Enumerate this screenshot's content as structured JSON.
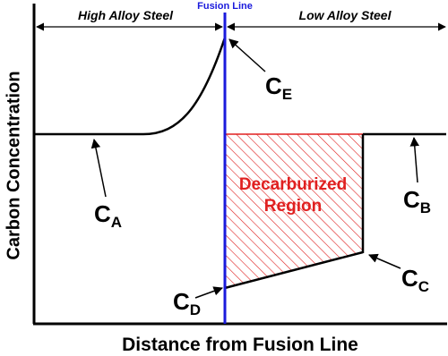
{
  "diagram": {
    "y_axis_label": "Carbon Concentration",
    "x_axis_label": "Distance from Fusion Line",
    "fusion_line_label": "Fusion Line",
    "left_region": "High Alloy Steel",
    "right_region": "Low Alloy Steel",
    "region_label": [
      "Decarburized",
      "Region"
    ],
    "points": [
      {
        "letter": "C",
        "subscript": "E"
      },
      {
        "letter": "C",
        "subscript": "A"
      },
      {
        "letter": "C",
        "subscript": "B"
      },
      {
        "letter": "C",
        "subscript": "C"
      },
      {
        "letter": "C",
        "subscript": "D"
      }
    ]
  }
}
